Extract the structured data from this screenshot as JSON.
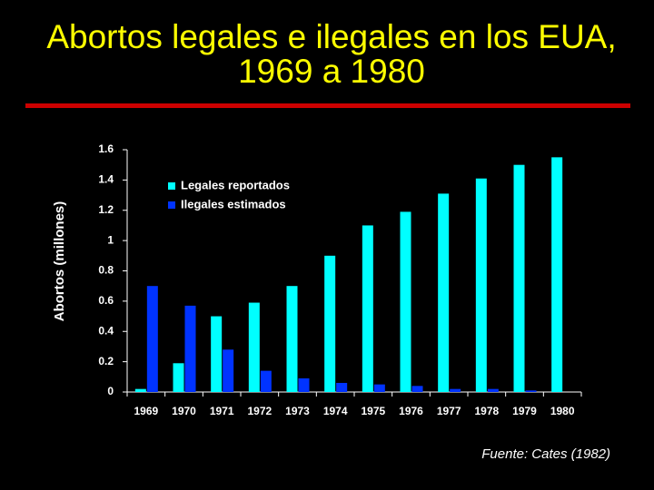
{
  "chart_data": {
    "type": "bar",
    "title": "Abortos legales e ilegales en los EUA, 1969 a 1980",
    "y_label": "Abortos (millones)",
    "source": "Fuente:  Cates (1982)",
    "categories": [
      "1969",
      "1970",
      "1971",
      "1972",
      "1973",
      "1974",
      "1975",
      "1976",
      "1977",
      "1978",
      "1979",
      "1980"
    ],
    "series": [
      {
        "name": "Legales reportados",
        "color": "#00ffff",
        "values": [
          0.02,
          0.19,
          0.5,
          0.59,
          0.7,
          0.9,
          1.1,
          1.19,
          1.31,
          1.41,
          1.5,
          1.55
        ]
      },
      {
        "name": "Ilegales estimados",
        "color": "#0033ff",
        "values": [
          0.7,
          0.57,
          0.28,
          0.14,
          0.09,
          0.06,
          0.05,
          0.04,
          0.02,
          0.02,
          0.01,
          0
        ]
      }
    ],
    "ylim": [
      0,
      1.6
    ],
    "yticks": [
      0,
      0.2,
      0.4,
      0.6,
      0.8,
      1,
      1.2,
      1.4,
      1.6
    ],
    "grid": false,
    "legend": "upper left"
  }
}
